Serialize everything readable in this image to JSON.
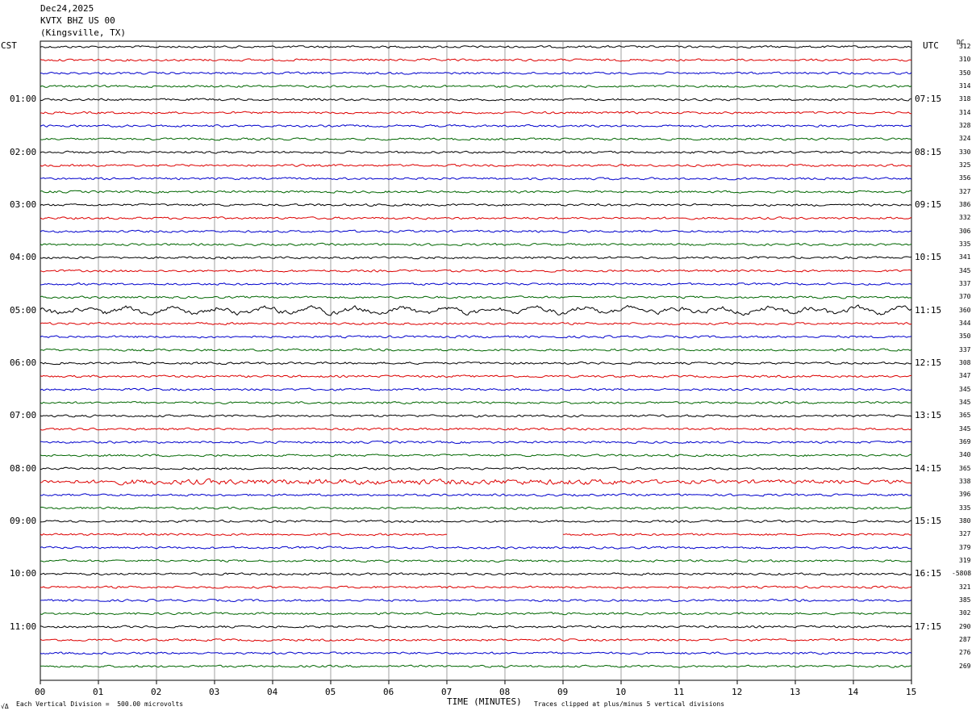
{
  "header": {
    "date": "Dec24,2025",
    "station": "KVTX BHZ US 00",
    "location": "(Kingsville, TX)"
  },
  "left_tz": "CST",
  "right_tz": "UTC",
  "dc_label": "DC",
  "footer": {
    "scale_note": "Each Vertical Division =  500.00 microvolts",
    "clip_note": "Traces clipped at plus/minus 5 vertical divisions",
    "corner_mark": "√Δ"
  },
  "chart_data": {
    "type": "line",
    "xlabel": "TIME (MINUTES)",
    "xlim": [
      0,
      15
    ],
    "x_ticks": [
      "00",
      "01",
      "02",
      "03",
      "04",
      "05",
      "06",
      "07",
      "08",
      "09",
      "10",
      "11",
      "12",
      "13",
      "14",
      "15"
    ],
    "trace_colors": [
      "#000000",
      "#dd0000",
      "#0000cc",
      "#006600"
    ],
    "trace_count": 48,
    "left_time_labels": [
      "01:00",
      "02:00",
      "03:00",
      "04:00",
      "05:00",
      "06:00",
      "07:00",
      "08:00",
      "09:00",
      "10:00",
      "11:00"
    ],
    "right_time_labels": [
      "07:15",
      "08:15",
      "09:15",
      "10:15",
      "11:15",
      "12:15",
      "13:15",
      "14:15",
      "15:15",
      "16:15",
      "17:15"
    ],
    "dc_offsets": [
      "312",
      "310",
      "350",
      "314",
      "318",
      "314",
      "328",
      "324",
      "330",
      "325",
      "356",
      "327",
      "386",
      "332",
      "306",
      "335",
      "341",
      "345",
      "337",
      "370",
      "360",
      "344",
      "350",
      "337",
      "308",
      "347",
      "345",
      "345",
      "365",
      "345",
      "369",
      "340",
      "365",
      "338",
      "396",
      "335",
      "380",
      "327",
      "379",
      "319",
      "-5808",
      "321",
      "385",
      "302",
      "290",
      "287",
      "276",
      "269"
    ],
    "event_trace": 20,
    "noisy_trace": 33,
    "gap": {
      "trace": 37,
      "from_min": 7.0,
      "to_min": 9.0
    }
  }
}
